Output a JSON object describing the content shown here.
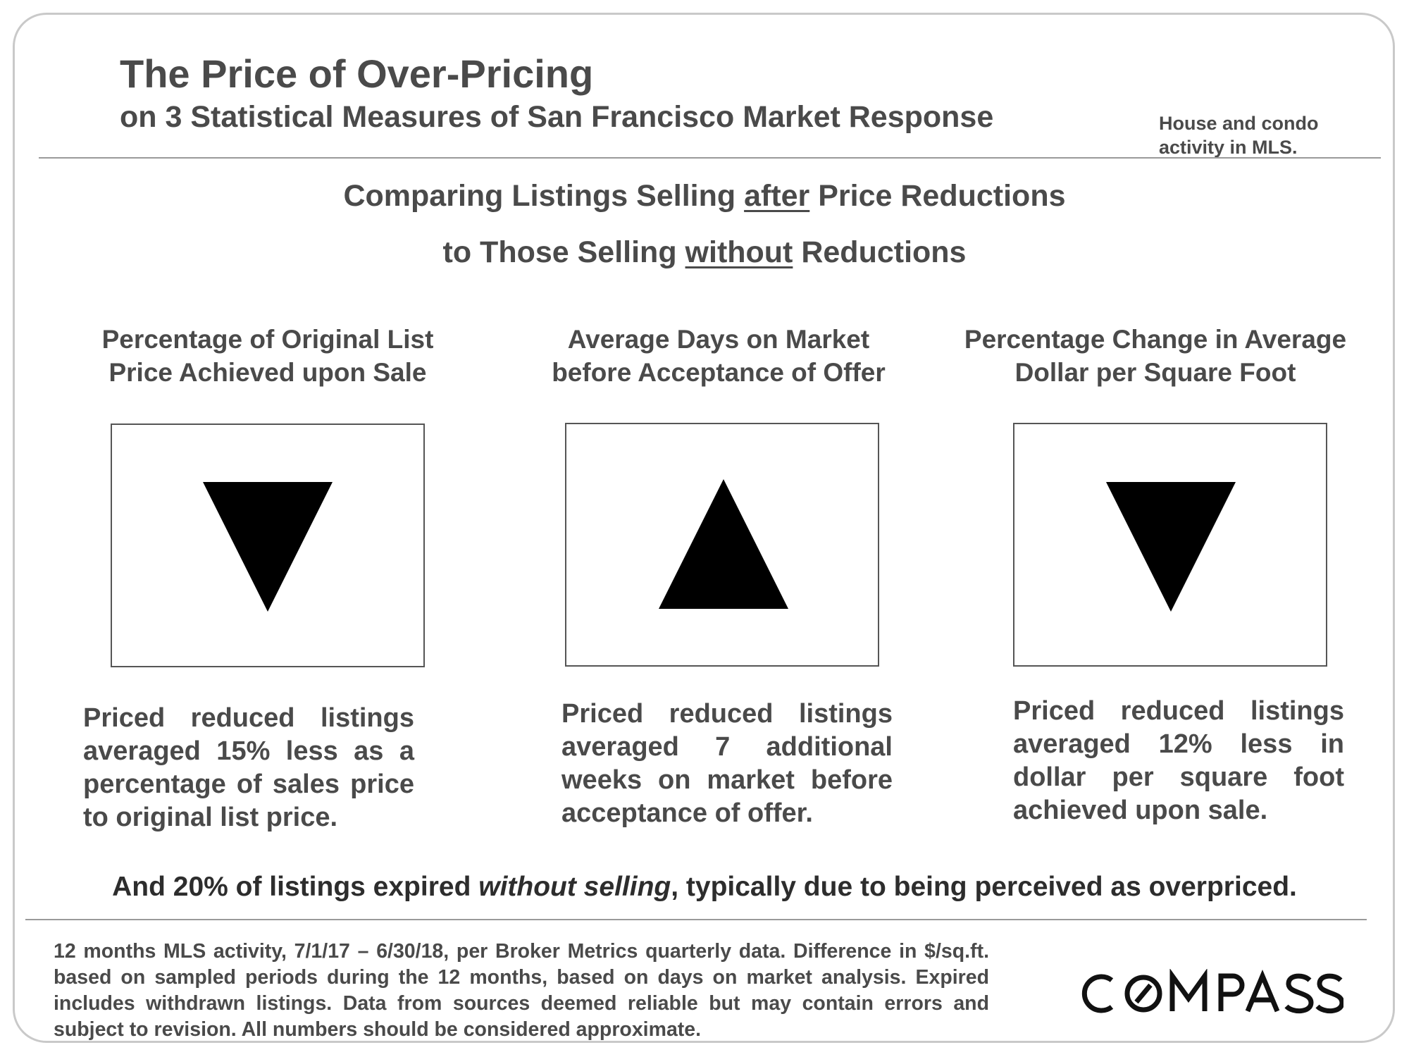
{
  "header": {
    "title": "The Price of Over-Pricing",
    "subtitle": "on 3 Statistical Measures of San Francisco Market Response",
    "note": "House and condo activity in MLS."
  },
  "comparison": {
    "line1": {
      "pre": "Comparing Listings Selling ",
      "emph": "after",
      "post": " Price Reductions"
    },
    "line2": {
      "pre": "to Those Selling ",
      "emph": "without",
      "post": " Reductions"
    }
  },
  "measures": [
    {
      "title_line1": "Percentage of Original List",
      "title_line2": "Price Achieved upon Sale",
      "direction": "down",
      "description": "Priced reduced listings averaged 15% less as a percentage of sales price to original list price."
    },
    {
      "title_line1": "Average Days on Market",
      "title_line2": "before Acceptance of Offer",
      "direction": "up",
      "description": "Priced reduced listings averaged 7 additional weeks on market before acceptance of offer."
    },
    {
      "title_line1": "Percentage Change in Average",
      "title_line2": "Dollar per Square Foot",
      "direction": "down",
      "description": "Priced reduced listings averaged 12% less in dollar per square foot achieved upon sale."
    }
  ],
  "conclusion": {
    "pre": "And 20% of listings expired ",
    "emph": "without selling",
    "post": ", typically due to being perceived as overpriced."
  },
  "footnote": "12 months MLS activity, 7/1/17 – 6/30/18, per Broker Metrics quarterly data. Difference in $/sq.ft. based on sampled periods during the 12 months, based on days on market analysis. Expired includes withdrawn listings. Data from sources deemed reliable but may contain errors and subject to revision.  All numbers should be considered approximate.",
  "logo": {
    "text": "COMPASS"
  },
  "colors": {
    "text": "#4a4a4a",
    "rule": "#9a9a9a",
    "triangle": "#000000"
  }
}
